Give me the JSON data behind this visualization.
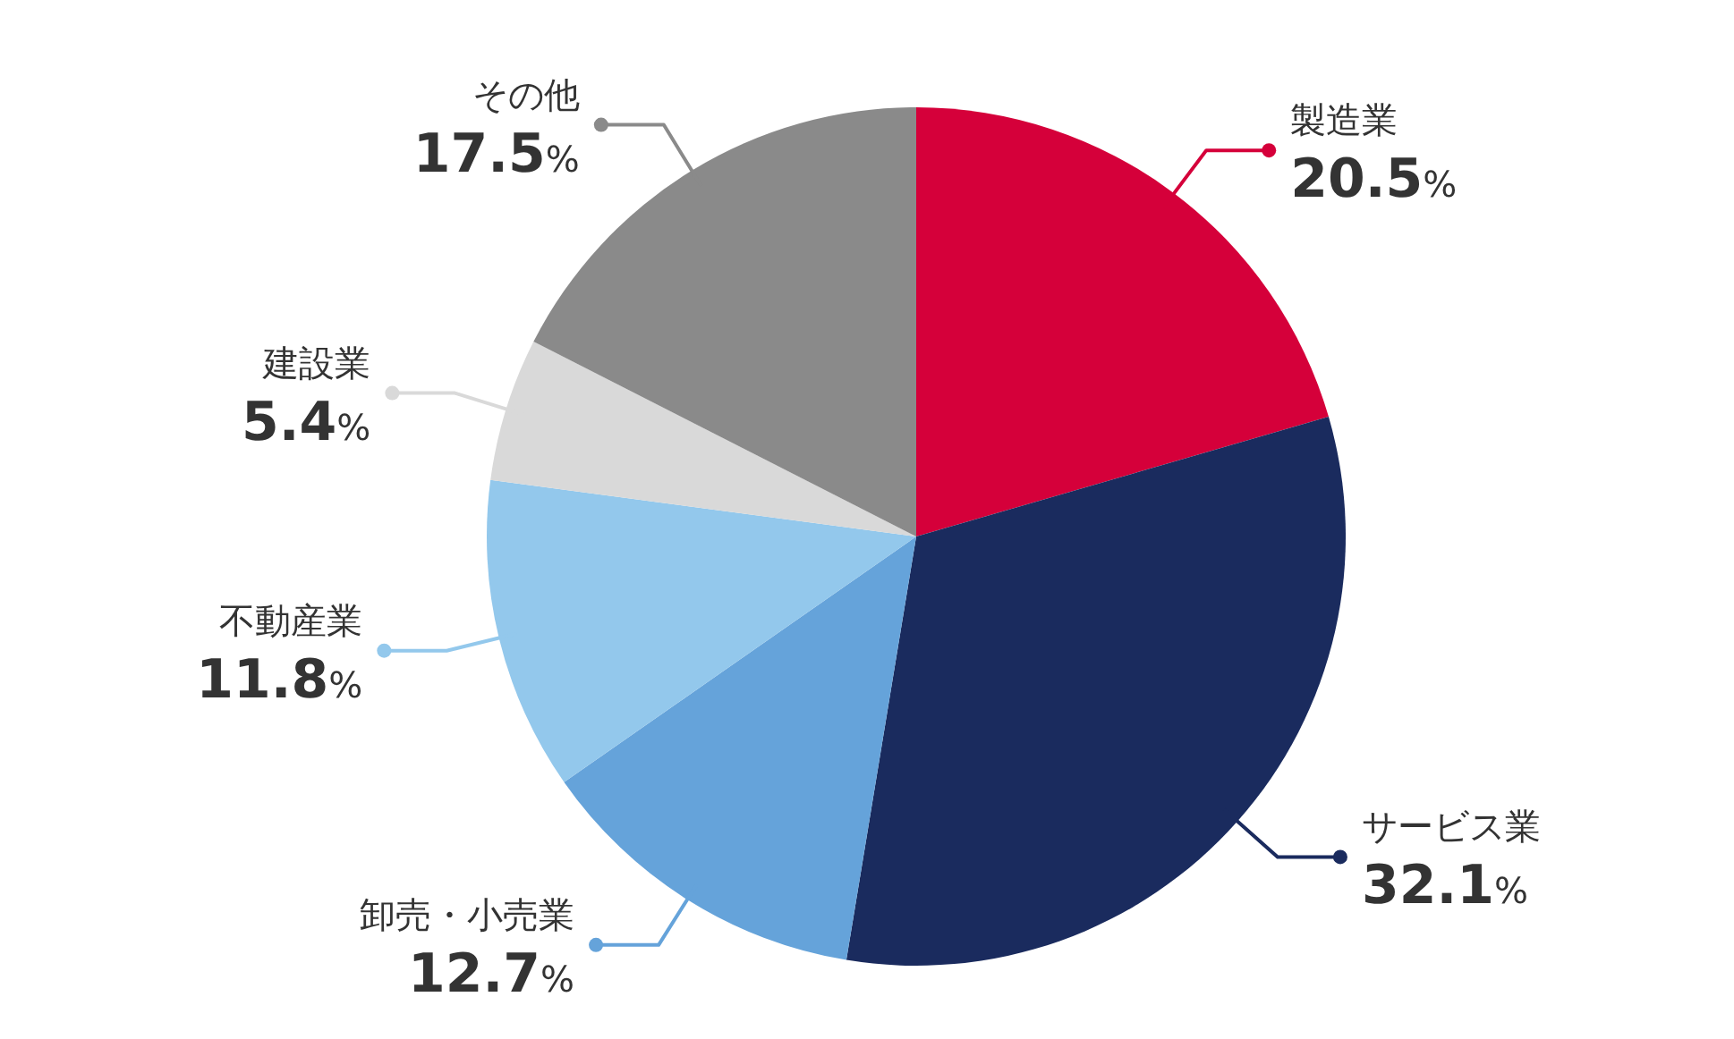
{
  "chart_data": {
    "type": "pie",
    "categories": [
      "製造業",
      "サービス業",
      "卸売・小売業",
      "不動産業",
      "建設業",
      "その他"
    ],
    "values": [
      20.5,
      32.1,
      12.7,
      11.8,
      5.4,
      17.5
    ],
    "value_labels": [
      "20.5%",
      "32.1%",
      "12.7%",
      "11.8%",
      "5.4%",
      "17.5%"
    ],
    "colors": [
      "#d5003a",
      "#1a2b5e",
      "#65a3da",
      "#93c8ec",
      "#d9d9d9",
      "#8a8a8a"
    ]
  }
}
